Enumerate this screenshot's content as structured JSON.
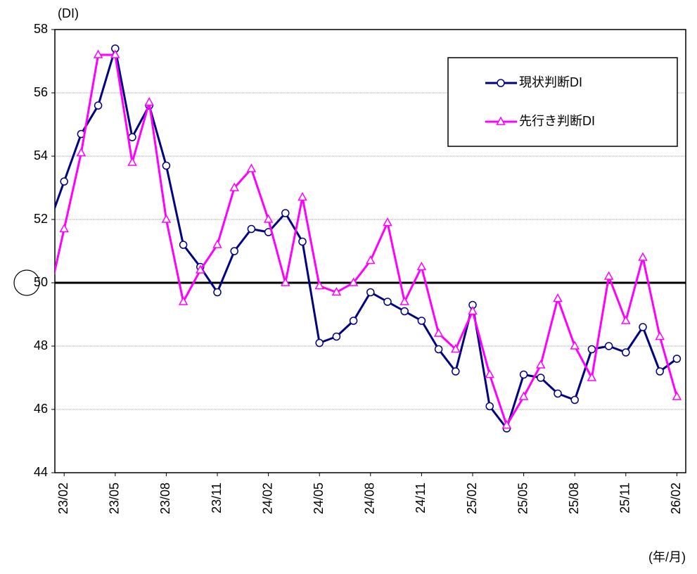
{
  "chart_data": {
    "type": "line",
    "y_label": "(DI)",
    "x_label": "(年/月)",
    "categories": [
      null,
      "23/02",
      null,
      null,
      "23/05",
      null,
      null,
      "23/08",
      null,
      null,
      "23/11",
      null,
      null,
      "24/02",
      null,
      null,
      "24/05",
      null,
      null,
      "24/08",
      null,
      null,
      "24/11",
      null,
      null,
      "25/02",
      null,
      null,
      "25/05",
      null,
      null,
      "25/08",
      null,
      null,
      "25/11",
      null,
      null,
      "26/02"
    ],
    "series": [
      {
        "name": "現状判断DI",
        "color": "#000080",
        "marker": "circle",
        "values": [
          51.7,
          53.2,
          54.7,
          55.6,
          57.4,
          54.6,
          55.6,
          53.7,
          51.2,
          50.5,
          49.7,
          51.0,
          51.7,
          51.6,
          52.2,
          51.3,
          48.1,
          48.3,
          48.8,
          49.7,
          49.4,
          49.1,
          48.8,
          47.9,
          47.2,
          49.3,
          46.1,
          45.4,
          47.1,
          47.0,
          46.5,
          46.3,
          47.9,
          48.0,
          47.8,
          48.6,
          47.2,
          47.6
        ]
      },
      {
        "name": "先行き判断DI",
        "color": "#ff00ff",
        "marker": "triangle",
        "values": [
          49.3,
          51.7,
          54.1,
          57.2,
          57.2,
          53.8,
          55.7,
          52.0,
          49.4,
          50.4,
          51.2,
          53.0,
          53.6,
          52.0,
          50.0,
          52.7,
          49.9,
          49.7,
          50.0,
          50.7,
          51.9,
          49.4,
          50.5,
          48.4,
          47.9,
          49.1,
          47.1,
          45.5,
          46.4,
          47.4,
          49.5,
          48.0,
          47.0,
          50.2,
          48.8,
          50.8,
          48.3,
          46.4
        ]
      }
    ],
    "ylim": [
      44,
      58
    ],
    "yticks": [
      44,
      46,
      48,
      50,
      52,
      54,
      56,
      58
    ],
    "reference_line": 50,
    "grid": true,
    "legend": "upper right"
  }
}
